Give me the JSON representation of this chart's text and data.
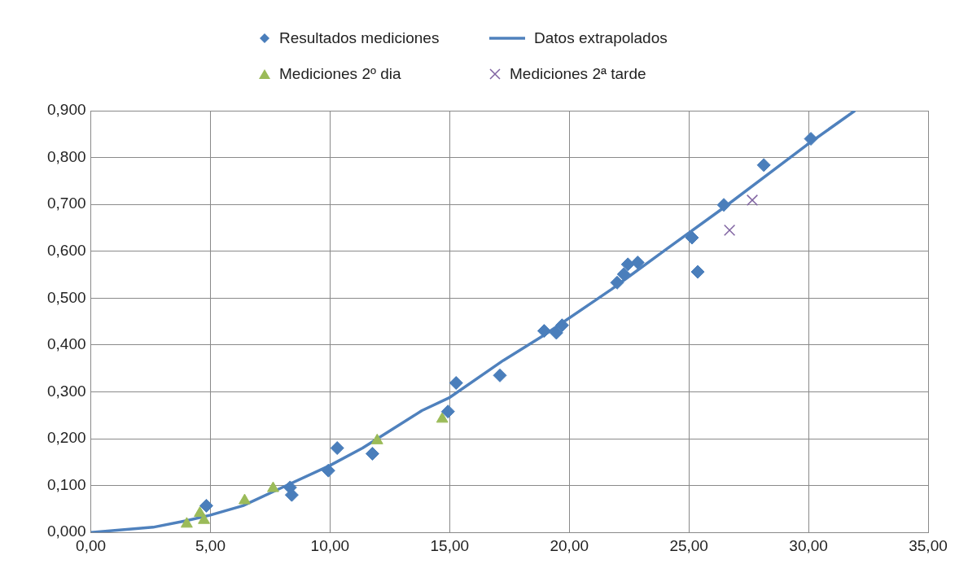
{
  "chart_data": {
    "type": "scatter",
    "xlim": [
      0,
      35
    ],
    "xticks": [
      {
        "value": 0,
        "label": "0,00"
      },
      {
        "value": 5,
        "label": "5,00"
      },
      {
        "value": 10,
        "label": "10,00"
      },
      {
        "value": 15,
        "label": "15,00"
      },
      {
        "value": 20,
        "label": "20,00"
      },
      {
        "value": 25,
        "label": "25,00"
      },
      {
        "value": 30,
        "label": "30,00"
      },
      {
        "value": 35,
        "label": "35,00"
      }
    ],
    "ylim": [
      0,
      0.9
    ],
    "yticks": [
      {
        "value": 0,
        "label": "0,000"
      },
      {
        "value": 0.1,
        "label": "0,100"
      },
      {
        "value": 0.2,
        "label": "0,200"
      },
      {
        "value": 0.3,
        "label": "0,300"
      },
      {
        "value": 0.4,
        "label": "0,400"
      },
      {
        "value": 0.5,
        "label": "0,500"
      },
      {
        "value": 0.6,
        "label": "0,600"
      },
      {
        "value": 0.7,
        "label": "0,700"
      },
      {
        "value": 0.8,
        "label": "0,800"
      },
      {
        "value": 0.9,
        "label": "0,900"
      }
    ],
    "grid": true,
    "legend": "top",
    "series": [
      {
        "name": "Resultados mediciones",
        "type": "scatter",
        "marker": "diamond",
        "color": "#4a7ebb",
        "x": [
          4.83,
          8.33,
          8.4,
          9.93,
          10.3,
          11.77,
          14.93,
          15.27,
          17.1,
          18.95,
          19.46,
          19.7,
          22.0,
          22.28,
          22.45,
          22.86,
          25.13,
          25.37,
          26.46,
          28.13,
          30.1
        ],
        "values": [
          0.057,
          0.096,
          0.08,
          0.132,
          0.18,
          0.168,
          0.258,
          0.319,
          0.335,
          0.43,
          0.426,
          0.442,
          0.533,
          0.551,
          0.572,
          0.576,
          0.629,
          0.556,
          0.699,
          0.784,
          0.84
        ]
      },
      {
        "name": "Datos extrapolados",
        "type": "line",
        "marker": "none",
        "line_style": "solid",
        "color": "#4f81bd",
        "x": [
          0,
          2.6,
          4,
          5,
          6.36,
          7.96,
          10,
          11.36,
          13.84,
          14.97,
          17.24,
          18.95,
          21.77,
          24.05,
          26.43,
          29.93,
          31.94
        ],
        "values": [
          0,
          0.011,
          0.025,
          0.037,
          0.057,
          0.095,
          0.143,
          0.18,
          0.26,
          0.287,
          0.367,
          0.421,
          0.519,
          0.604,
          0.692,
          0.827,
          0.9
        ]
      },
      {
        "name": "Mediciones 2º dia",
        "type": "scatter",
        "marker": "triangle",
        "color": "#9bbb59",
        "x": [
          4.01,
          4.56,
          4.73,
          6.43,
          7.62,
          11.97,
          14.69
        ],
        "values": [
          0.018,
          0.041,
          0.026,
          0.068,
          0.094,
          0.196,
          0.242
        ]
      },
      {
        "name": "Mediciones 2ª tarde",
        "type": "scatter",
        "marker": "cross",
        "color": "#8064a2",
        "x": [
          26.7,
          27.65
        ],
        "values": [
          0.645,
          0.709
        ]
      }
    ]
  }
}
